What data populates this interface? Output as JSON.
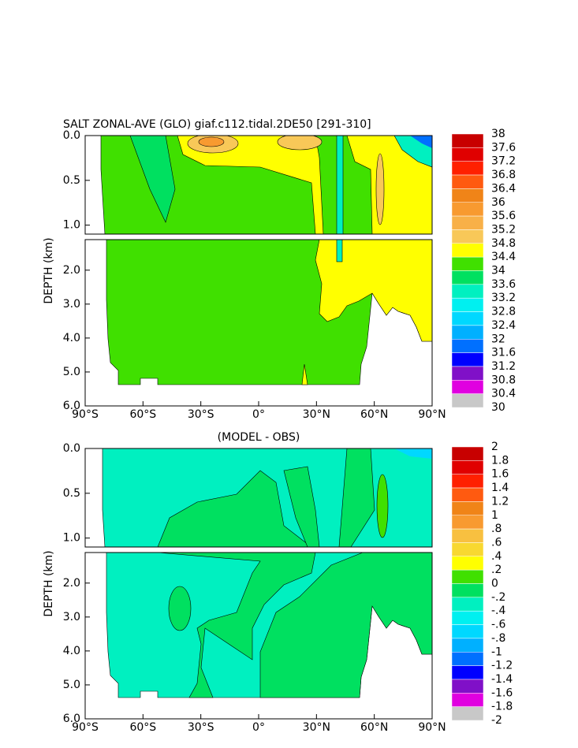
{
  "chart_data": [
    {
      "type": "contour",
      "title": "SALT ZONAL-AVE (GLO) giaf.c112.tidal.2DE50 [291-310]",
      "y_label": "DEPTH (km)",
      "xlim": [
        -90,
        90
      ],
      "xticks": [
        {
          "value": -90,
          "label": "90°S"
        },
        {
          "value": -60,
          "label": "60°S"
        },
        {
          "value": -30,
          "label": "30°S"
        },
        {
          "value": 0,
          "label": "0°"
        },
        {
          "value": 30,
          "label": "30°N"
        },
        {
          "value": 60,
          "label": "60°N"
        },
        {
          "value": 90,
          "label": "90°N"
        }
      ],
      "ylim": [
        6,
        0
      ],
      "y_break": 1.1,
      "yticks": [
        {
          "value": 0,
          "label": "0.0"
        },
        0.5,
        {
          "value": 1,
          "label": "1.0"
        },
        {
          "value": 2,
          "label": "2.0"
        },
        {
          "value": 3,
          "label": "3.0"
        },
        {
          "value": 4,
          "label": "4.0"
        },
        {
          "value": 5,
          "label": "5.0"
        },
        {
          "value": 6,
          "label": "6.0"
        }
      ],
      "levels": [
        38,
        37.6,
        37.2,
        36.8,
        36.4,
        36,
        35.6,
        35.2,
        34.8,
        34.4,
        34,
        33.6,
        33.2,
        32.8,
        32.4,
        32,
        31.6,
        31.2,
        30.8,
        30.4,
        30
      ],
      "colors": [
        "#c80000",
        "#e00000",
        "#ff2000",
        "#ff5a10",
        "#f08418",
        "#f89a30",
        "#f8b048",
        "#f8c858",
        "#ffff00",
        "#40e000",
        "#00e060",
        "#00f0c0",
        "#00f0f0",
        "#00d8ff",
        "#00b0ff",
        "#0070ff",
        "#0000ff",
        "#8010c8",
        "#e000e0",
        "#c8c8c8"
      ]
    },
    {
      "type": "contour",
      "title": "(MODEL - OBS)",
      "y_label": "DEPTH (km)",
      "xlim": [
        -90,
        90
      ],
      "xticks": [
        {
          "value": -90,
          "label": "90°S"
        },
        {
          "value": -60,
          "label": "60°S"
        },
        {
          "value": -30,
          "label": "30°S"
        },
        {
          "value": 0,
          "label": "0°"
        },
        {
          "value": 30,
          "label": "30°N"
        },
        {
          "value": 60,
          "label": "60°N"
        },
        {
          "value": 90,
          "label": "90°N"
        }
      ],
      "ylim": [
        6,
        0
      ],
      "y_break": 1.1,
      "yticks": [
        {
          "value": 0,
          "label": "0.0"
        },
        0.5,
        {
          "value": 1,
          "label": "1.0"
        },
        {
          "value": 2,
          "label": "2.0"
        },
        {
          "value": 3,
          "label": "3.0"
        },
        {
          "value": 4,
          "label": "4.0"
        },
        {
          "value": 5,
          "label": "5.0"
        },
        {
          "value": 6,
          "label": "6.0"
        }
      ],
      "levels": [
        2,
        1.8,
        1.6,
        1.4,
        1.2,
        1,
        {
          "value": 0.8,
          "label": ".8"
        },
        {
          "value": 0.6,
          "label": ".6"
        },
        {
          "value": 0.4,
          "label": ".4"
        },
        {
          "value": 0.2,
          "label": ".2"
        },
        0,
        {
          "value": -0.2,
          "label": "-.2"
        },
        {
          "value": -0.4,
          "label": "-.4"
        },
        {
          "value": -0.6,
          "label": "-.6"
        },
        {
          "value": -0.8,
          "label": "-.8"
        },
        -1,
        -1.2,
        -1.4,
        -1.6,
        -1.8,
        -2
      ],
      "colors": [
        "#c80000",
        "#e00000",
        "#ff2000",
        "#ff5a10",
        "#f08418",
        "#f89a30",
        "#f8c040",
        "#f8d830",
        "#ffff00",
        "#40e000",
        "#00e060",
        "#00f0c0",
        "#00f0f0",
        "#00d8ff",
        "#00b0ff",
        "#0070ff",
        "#0000ff",
        "#8010c8",
        "#e000e0",
        "#c8c8c8"
      ]
    }
  ]
}
